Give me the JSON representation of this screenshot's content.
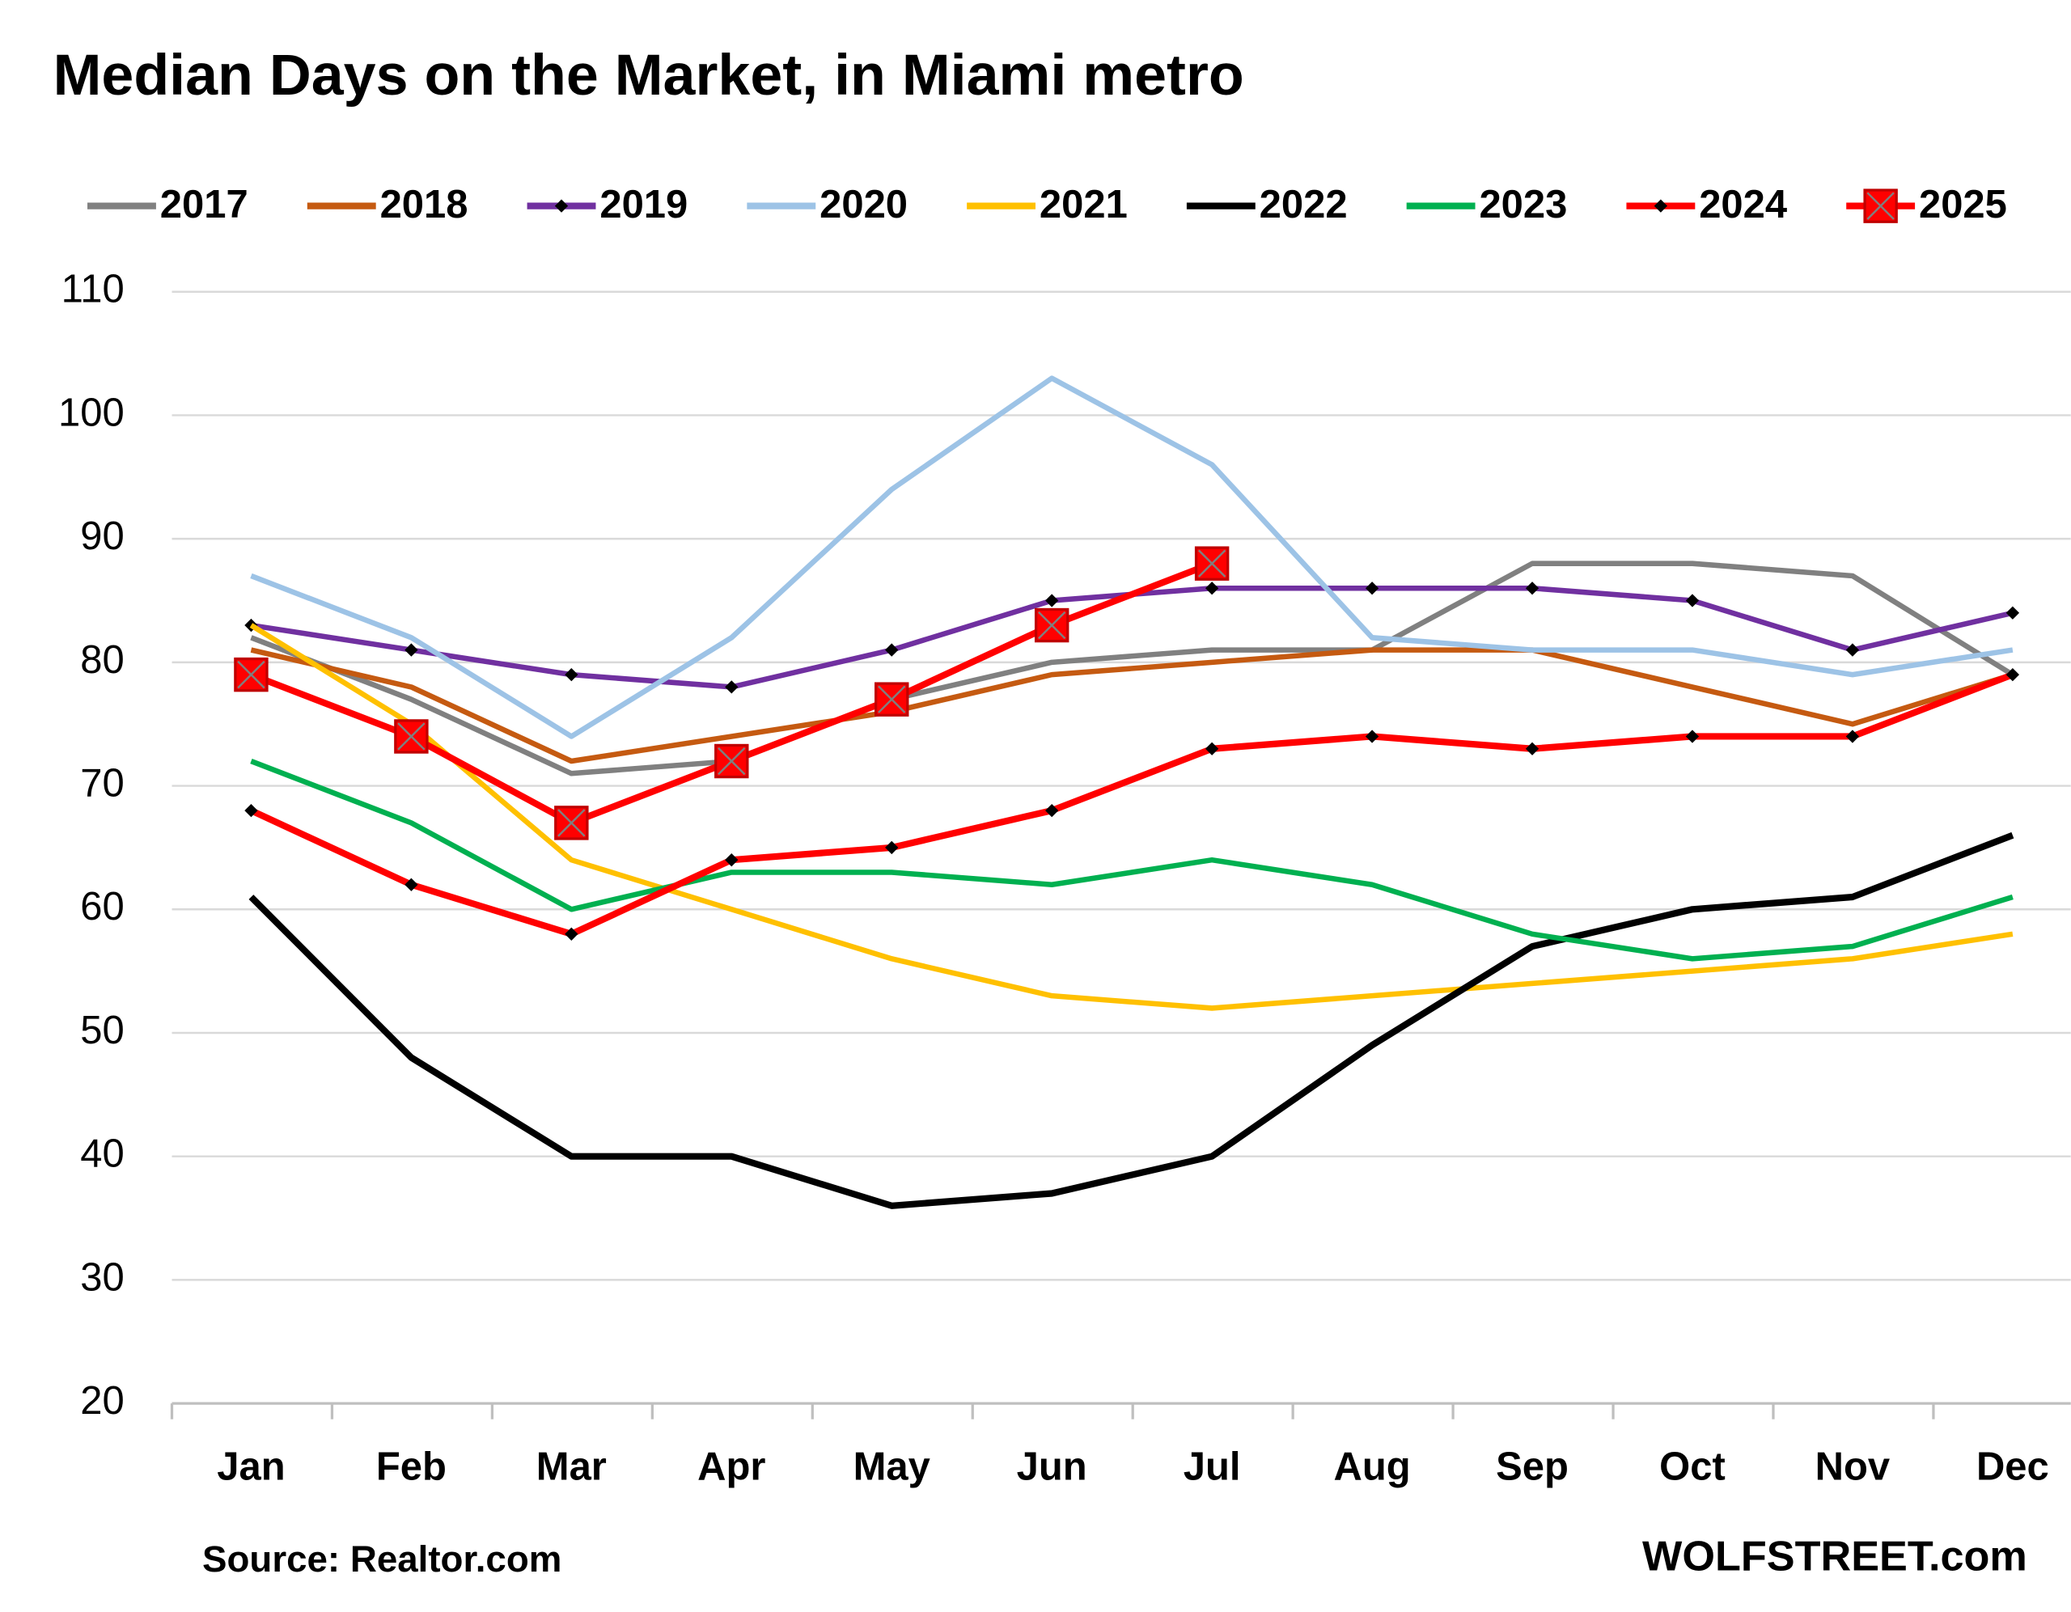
{
  "chart_data": {
    "type": "line",
    "title": "Median Days on the Market, in Miami metro",
    "source": "Source: Realtor.com",
    "credit": "WOLFSTREET.com",
    "categories": [
      "Jan",
      "Feb",
      "Mar",
      "Apr",
      "May",
      "Jun",
      "Jul",
      "Aug",
      "Sep",
      "Oct",
      "Nov",
      "Dec"
    ],
    "ylim": [
      20,
      110
    ],
    "yticks": [
      20,
      30,
      40,
      50,
      60,
      70,
      80,
      90,
      100,
      110
    ],
    "grid": true,
    "legend": "top",
    "series": [
      {
        "name": "2017",
        "color": "#808080",
        "values": [
          82,
          77,
          71,
          72,
          77,
          80,
          81,
          81,
          88,
          88,
          87,
          79
        ]
      },
      {
        "name": "2018",
        "color": "#c55a11",
        "values": [
          81,
          78,
          72,
          74,
          76,
          79,
          80,
          81,
          81,
          78,
          75,
          79
        ]
      },
      {
        "name": "2019",
        "color": "#7030a0",
        "marker": "diamond",
        "values": [
          83,
          81,
          79,
          78,
          81,
          85,
          86,
          86,
          86,
          85,
          81,
          84
        ]
      },
      {
        "name": "2020",
        "color": "#9dc3e6",
        "values": [
          87,
          82,
          74,
          82,
          94,
          103,
          96,
          82,
          81,
          81,
          79,
          81
        ]
      },
      {
        "name": "2021",
        "color": "#ffc000",
        "values": [
          83,
          75,
          64,
          60,
          56,
          53,
          52,
          53,
          54,
          55,
          56,
          58
        ]
      },
      {
        "name": "2022",
        "color": "#000000",
        "values": [
          61,
          48,
          40,
          40,
          36,
          37,
          40,
          49,
          57,
          60,
          61,
          66
        ]
      },
      {
        "name": "2023",
        "color": "#00b050",
        "values": [
          72,
          67,
          60,
          63,
          63,
          62,
          64,
          62,
          58,
          56,
          57,
          61
        ]
      },
      {
        "name": "2024",
        "color": "#ff0000",
        "marker": "diamond",
        "values": [
          68,
          62,
          58,
          64,
          65,
          68,
          73,
          74,
          73,
          74,
          74,
          79
        ]
      },
      {
        "name": "2025",
        "color": "#ff0000",
        "marker": "square",
        "values": [
          79,
          74,
          67,
          72,
          77,
          83,
          88,
          null,
          null,
          null,
          null,
          null
        ]
      }
    ]
  }
}
